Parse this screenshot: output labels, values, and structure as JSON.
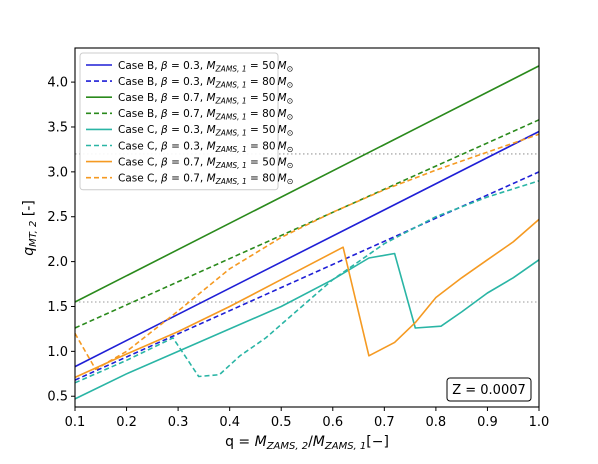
{
  "chart_data": {
    "type": "line",
    "xlabel": "q = M_{ZAMS,2}/M_{ZAMS,1}[−]",
    "ylabel": "q_{MT,2} [-]",
    "xlim": [
      0.1,
      1.0
    ],
    "ylim": [
      0.38,
      4.38
    ],
    "x_ticks": [
      0.1,
      0.2,
      0.3,
      0.4,
      0.5,
      0.6,
      0.7,
      0.8,
      0.9,
      1.0
    ],
    "y_ticks": [
      0.5,
      1.0,
      1.5,
      2.0,
      2.5,
      3.0,
      3.5,
      4.0
    ],
    "grid": false,
    "legend_position": "top-left",
    "annotation": "Z = 0.0007",
    "reference_lines": [
      {
        "y": 1.55,
        "style": "dotted",
        "color": "#999999"
      },
      {
        "y": 3.2,
        "style": "dotted",
        "color": "#999999"
      }
    ],
    "series": [
      {
        "name": "Case B, β = 0.3, M_ZAMS,1 = 50 M⊙",
        "color": "#1f1fd6",
        "dash": "solid",
        "x": [
          0.1,
          1.0
        ],
        "y": [
          0.83,
          3.45
        ]
      },
      {
        "name": "Case B, β = 0.3, M_ZAMS,1 = 80 M⊙",
        "color": "#1f1fd6",
        "dash": "dashed",
        "x": [
          0.1,
          1.0
        ],
        "y": [
          0.68,
          3.0
        ]
      },
      {
        "name": "Case B, β = 0.7, M_ZAMS,1 = 50 M⊙",
        "color": "#2a8a1c",
        "dash": "solid",
        "x": [
          0.1,
          1.0
        ],
        "y": [
          1.55,
          4.18
        ]
      },
      {
        "name": "Case B, β = 0.7, M_ZAMS,1 = 80 M⊙",
        "color": "#2a8a1c",
        "dash": "dashed",
        "x": [
          0.1,
          1.0
        ],
        "y": [
          1.26,
          3.58
        ]
      },
      {
        "name": "Case C, β = 0.3, M_ZAMS,1 = 50 M⊙",
        "color": "#2ab5a5",
        "dash": "solid",
        "x": [
          0.1,
          0.2,
          0.3,
          0.4,
          0.5,
          0.6,
          0.67,
          0.72,
          0.76,
          0.81,
          0.85,
          0.9,
          0.95,
          1.0
        ],
        "y": [
          0.47,
          0.75,
          1.0,
          1.25,
          1.5,
          1.8,
          2.04,
          2.09,
          1.26,
          1.28,
          1.44,
          1.65,
          1.82,
          2.02
        ]
      },
      {
        "name": "Case C, β = 0.3, M_ZAMS,1 = 80 M⊙",
        "color": "#2ab5a5",
        "dash": "dashed",
        "x": [
          0.1,
          0.2,
          0.29,
          0.34,
          0.38,
          0.42,
          0.47,
          0.55,
          0.6,
          0.7,
          0.8,
          0.9,
          1.0
        ],
        "y": [
          0.65,
          0.9,
          1.15,
          0.72,
          0.74,
          0.95,
          1.15,
          1.55,
          1.8,
          2.2,
          2.5,
          2.72,
          2.9
        ]
      },
      {
        "name": "Case C, β = 0.7, M_ZAMS,1 = 50 M⊙",
        "color": "#f59a22",
        "dash": "solid",
        "x": [
          0.1,
          0.2,
          0.3,
          0.4,
          0.5,
          0.62,
          0.67,
          0.72,
          0.76,
          0.8,
          0.85,
          0.9,
          0.95,
          1.0
        ],
        "y": [
          0.71,
          0.97,
          1.22,
          1.5,
          1.8,
          2.16,
          0.95,
          1.1,
          1.32,
          1.6,
          1.82,
          2.02,
          2.22,
          2.47
        ]
      },
      {
        "name": "Case C, β = 0.7, M_ZAMS,1 = 80 M⊙",
        "color": "#f59a22",
        "dash": "dashed",
        "x": [
          0.1,
          0.14,
          0.2,
          0.3,
          0.4,
          0.5,
          0.6,
          0.7,
          0.8,
          0.9,
          1.0
        ],
        "y": [
          1.2,
          0.8,
          1.0,
          1.45,
          1.92,
          2.27,
          2.55,
          2.8,
          3.02,
          3.22,
          3.42
        ]
      }
    ]
  }
}
